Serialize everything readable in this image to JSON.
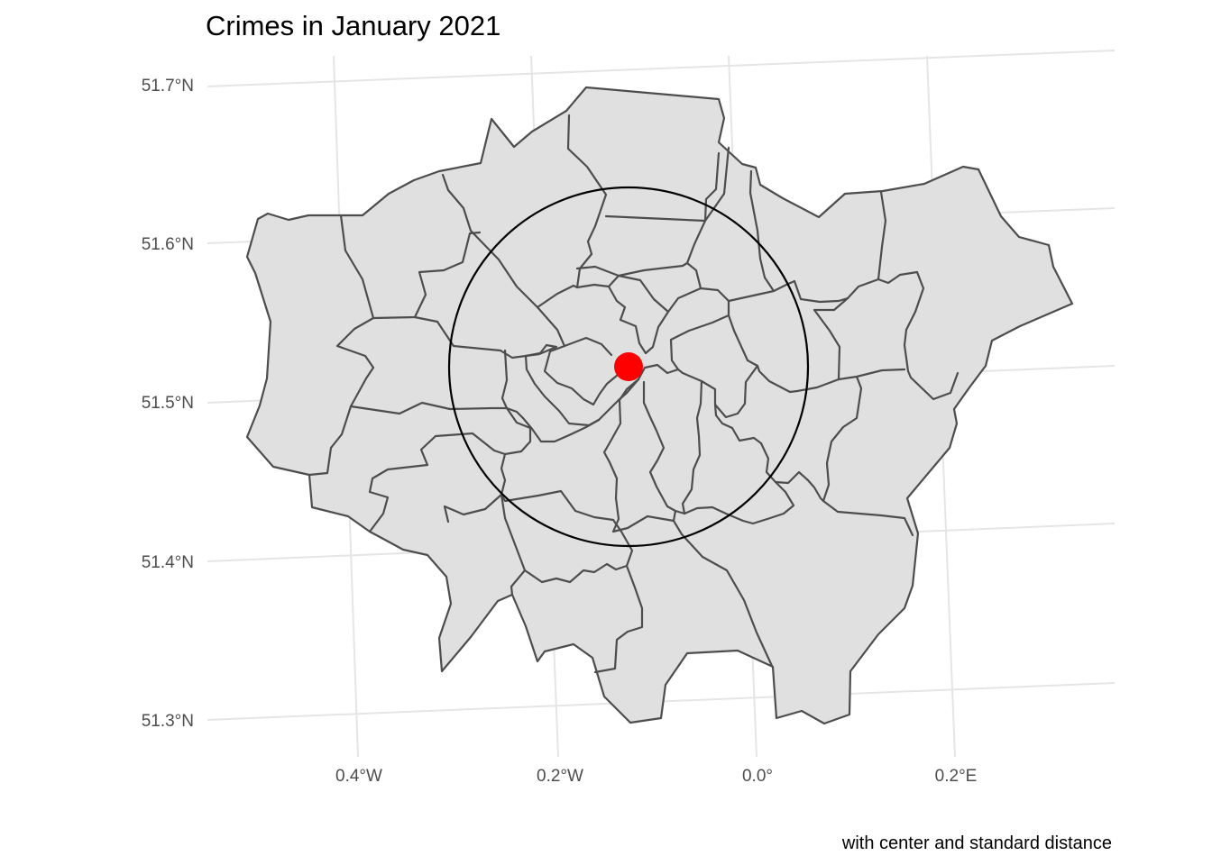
{
  "map": {
    "title": "Crimes in January 2021",
    "caption": "with center and standard distance",
    "y_ticks": [
      "51.7°N",
      "51.6°N",
      "51.5°N",
      "51.4°N",
      "51.3°N"
    ],
    "x_ticks": [
      "0.4°W",
      "0.2°W",
      "0.0°",
      "0.2°E"
    ],
    "region": "Greater London boroughs",
    "fill_color": "#e0e0e0",
    "border_color": "#4d4d4d",
    "center_point": {
      "lon": -0.13,
      "lat": 51.52,
      "color": "#ff0000"
    },
    "standard_distance_circle": {
      "color": "#000000"
    }
  }
}
